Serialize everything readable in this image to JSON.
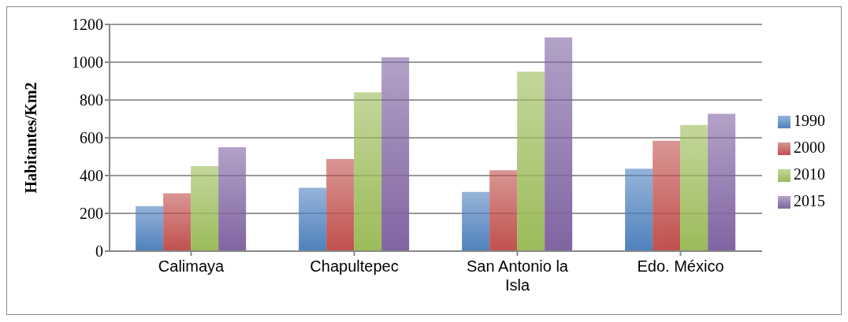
{
  "chart_data": {
    "type": "bar",
    "ylabel": "Habitantes/Km2",
    "categories": [
      "Calimaya",
      "Chapultepec",
      "San Antonio la Isla",
      "Edo. México"
    ],
    "series": [
      {
        "name": "1990",
        "color": "#4f81bd",
        "values": [
          239,
          335,
          314,
          436
        ]
      },
      {
        "name": "2000",
        "color": "#c0504d",
        "values": [
          306,
          487,
          428,
          584
        ]
      },
      {
        "name": "2010",
        "color": "#9bbb59",
        "values": [
          450,
          841,
          950,
          668
        ]
      },
      {
        "name": "2015",
        "color": "#8064a2",
        "values": [
          550,
          1026,
          1131,
          727
        ]
      }
    ],
    "ylim": [
      0,
      1200
    ],
    "yticks": [
      0,
      200,
      400,
      600,
      800,
      1000,
      1200
    ],
    "grid": "y",
    "legend": "right"
  }
}
